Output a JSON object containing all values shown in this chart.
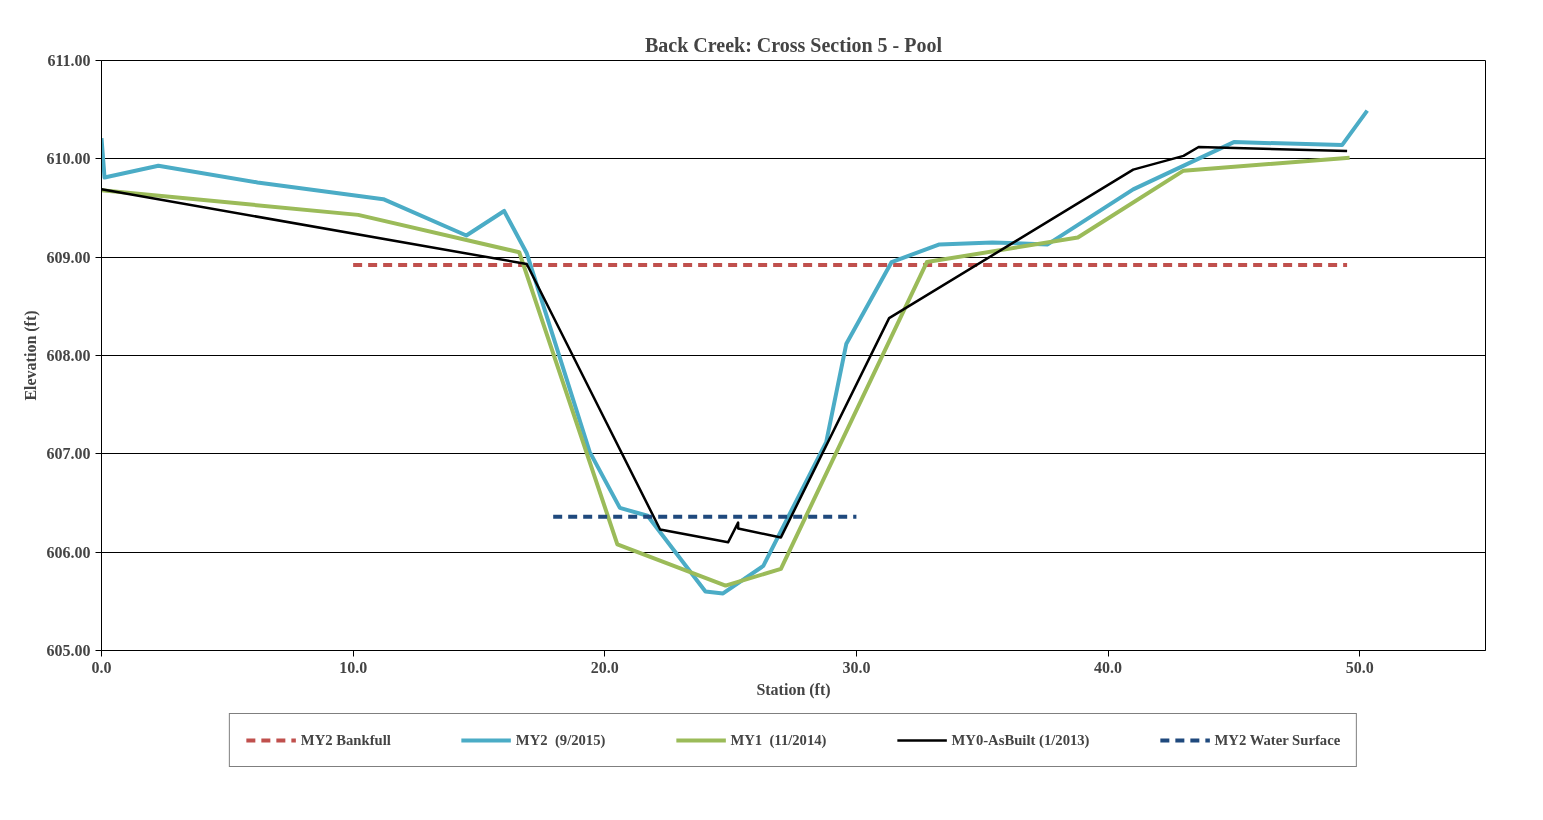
{
  "chart_data": {
    "type": "line",
    "title": "Back Creek: Cross Section 5 - Pool",
    "xlabel": "Station (ft)",
    "ylabel": "Elevation (ft)",
    "xlim": [
      0,
      55
    ],
    "xticks": [
      {
        "value": 0,
        "label": "0.0"
      },
      {
        "value": 10,
        "label": "10.0"
      },
      {
        "value": 20,
        "label": "20.0"
      },
      {
        "value": 30,
        "label": "30.0"
      },
      {
        "value": 40,
        "label": "40.0"
      },
      {
        "value": 50,
        "label": "50.0"
      }
    ],
    "ylim": [
      605,
      611
    ],
    "yticks": [
      {
        "value": 605,
        "label": "605.00"
      },
      {
        "value": 606,
        "label": "606.00"
      },
      {
        "value": 607,
        "label": "607.00"
      },
      {
        "value": 608,
        "label": "608.00"
      },
      {
        "value": 609,
        "label": "609.00"
      },
      {
        "value": 610,
        "label": "610.00"
      },
      {
        "value": 611,
        "label": "611.00"
      }
    ],
    "grid": "y",
    "legend": "bottom",
    "marker": "none",
    "series": [
      {
        "name": "MY2 Bankfull",
        "color": "#c0504d",
        "line_style": "dashed",
        "x": [
          10.0,
          49.5
        ],
        "values": [
          608.92,
          608.92
        ]
      },
      {
        "name": "MY2  (9/2015)",
        "color": "#4bacc6",
        "line_style": "solid",
        "x": [
          0,
          0.12,
          2.26,
          6.2,
          11.2,
          14.5,
          16.0,
          16.9,
          19.4,
          20.6,
          21.7,
          24.0,
          24.7,
          26.3,
          28.8,
          29.6,
          31.4,
          33.3,
          35.4,
          37.6,
          41.0,
          45.0,
          49.3,
          50.3
        ],
        "values": [
          610.21,
          609.81,
          609.93,
          609.76,
          609.59,
          609.22,
          609.47,
          609.04,
          607.02,
          606.45,
          606.37,
          605.6,
          605.58,
          605.86,
          607.12,
          608.12,
          608.95,
          609.13,
          609.15,
          609.13,
          609.69,
          610.17,
          610.14,
          610.49
        ]
      },
      {
        "name": "MY1  (11/2014)",
        "color": "#9bbb59",
        "line_style": "solid",
        "x": [
          0,
          10.2,
          16.6,
          20.5,
          24.8,
          27.0,
          32.8,
          38.8,
          43.0,
          49.6
        ],
        "values": [
          609.68,
          609.43,
          609.05,
          606.08,
          605.66,
          605.83,
          608.95,
          609.2,
          609.88,
          610.01
        ]
      },
      {
        "name": "MY0-AsBuilt (1/2013)",
        "color": "#000000",
        "line_style": "solid",
        "x": [
          0,
          16.9,
          22.2,
          24.9,
          25.3,
          25.3,
          27.0,
          31.3,
          41.0,
          43.0,
          43.6,
          49.5
        ],
        "values": [
          609.69,
          608.93,
          606.23,
          606.1,
          606.3,
          606.24,
          606.15,
          608.38,
          609.89,
          610.03,
          610.12,
          610.08
        ]
      },
      {
        "name": "MY2 Water Surface",
        "color": "#1f497d",
        "line_style": "dashed",
        "x": [
          17.95,
          30.0
        ],
        "values": [
          606.36,
          606.36
        ]
      }
    ]
  }
}
